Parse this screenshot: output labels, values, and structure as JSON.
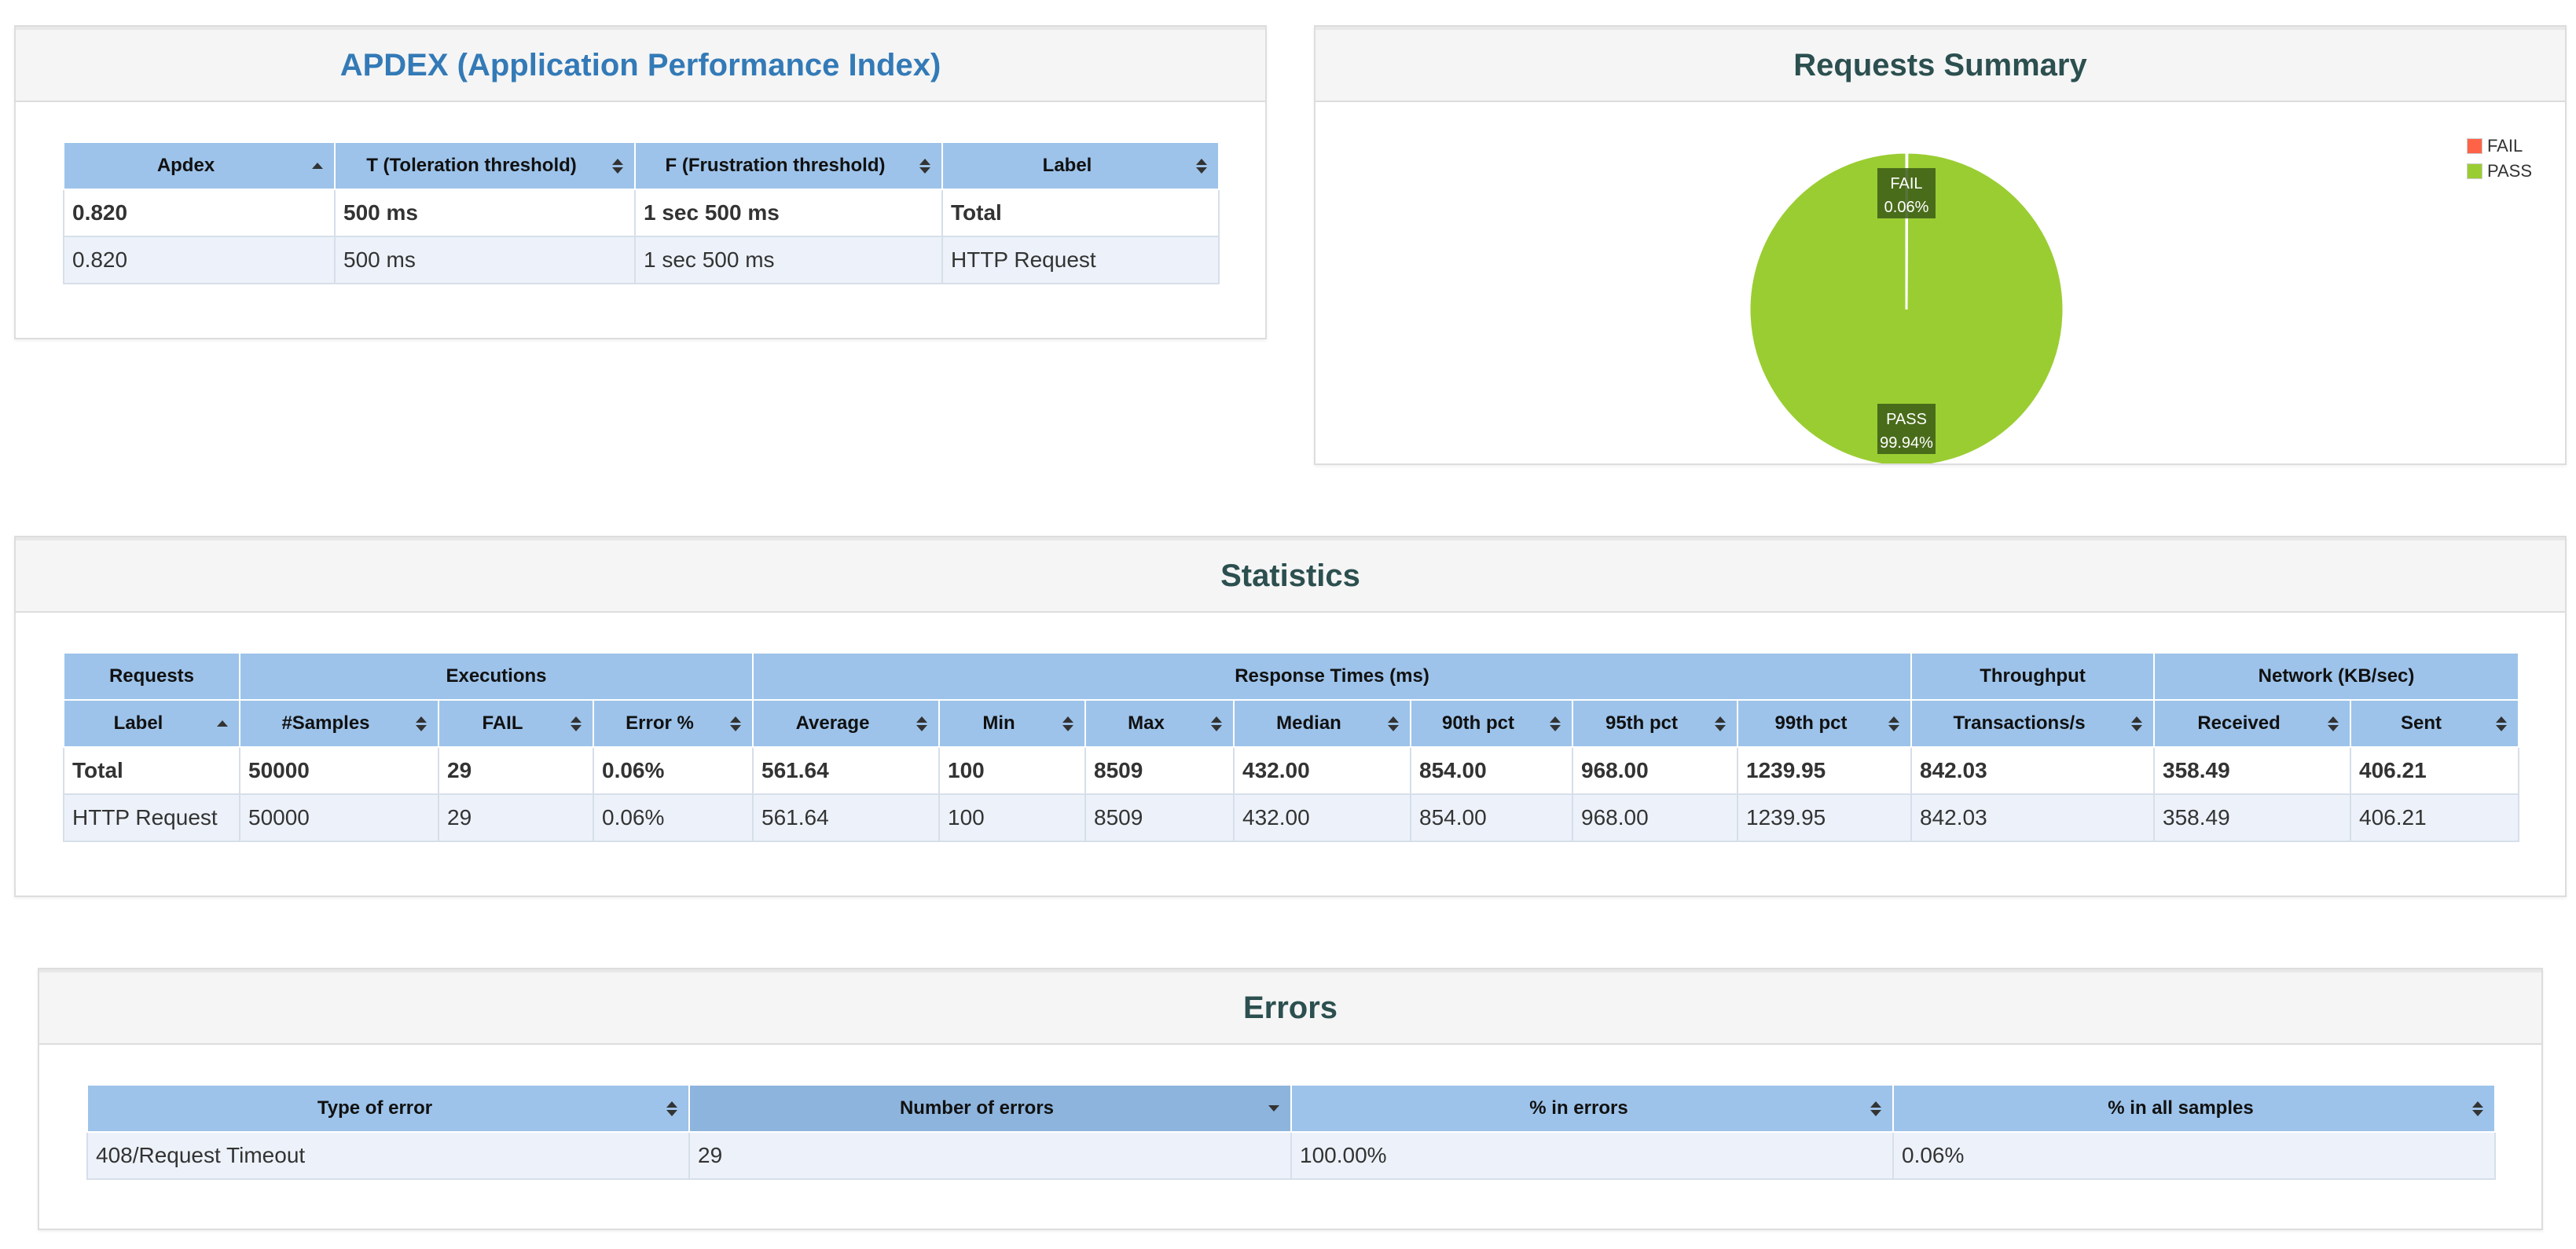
{
  "apdex": {
    "title": "APDEX (Application Performance Index)",
    "headers": [
      "Apdex",
      "T (Toleration threshold)",
      "F (Frustration threshold)",
      "Label"
    ],
    "rows": [
      [
        "0.820",
        "500 ms",
        "1 sec 500 ms",
        "Total"
      ],
      [
        "0.820",
        "500 ms",
        "1 sec 500 ms",
        "HTTP Request"
      ]
    ]
  },
  "summary": {
    "title": "Requests Summary",
    "legend": [
      {
        "label": "FAIL",
        "color": "#ff6347"
      },
      {
        "label": "PASS",
        "color": "#9acd32"
      }
    ],
    "fail_label": "FAIL",
    "fail_pct": "0.06%",
    "pass_label": "PASS",
    "pass_pct": "99.94%"
  },
  "chart_data": {
    "type": "pie",
    "categories": [
      "FAIL",
      "PASS"
    ],
    "values": [
      0.06,
      99.94
    ],
    "colors": [
      "#ff6347",
      "#9acd32"
    ]
  },
  "statistics": {
    "title": "Statistics",
    "groups": [
      "Requests",
      "Executions",
      "Response Times (ms)",
      "Throughput",
      "Network (KB/sec)"
    ],
    "headers": [
      "Label",
      "#Samples",
      "FAIL",
      "Error %",
      "Average",
      "Min",
      "Max",
      "Median",
      "90th pct",
      "95th pct",
      "99th pct",
      "Transactions/s",
      "Received",
      "Sent"
    ],
    "rows": [
      [
        "Total",
        "50000",
        "29",
        "0.06%",
        "561.64",
        "100",
        "8509",
        "432.00",
        "854.00",
        "968.00",
        "1239.95",
        "842.03",
        "358.49",
        "406.21"
      ],
      [
        "HTTP Request",
        "50000",
        "29",
        "0.06%",
        "561.64",
        "100",
        "8509",
        "432.00",
        "854.00",
        "968.00",
        "1239.95",
        "842.03",
        "358.49",
        "406.21"
      ]
    ]
  },
  "errors": {
    "title": "Errors",
    "headers": [
      "Type of error",
      "Number of errors",
      "% in errors",
      "% in all samples"
    ],
    "rows": [
      [
        "408/Request Timeout",
        "29",
        "100.00%",
        "0.06%"
      ]
    ]
  },
  "colors": {
    "header_bg": "#9dc3ea",
    "odd_row_bg": "#edf2fa",
    "pass": "#9acd32",
    "fail": "#ff6347",
    "apdex_title": "#337ab7",
    "title": "#2c4f4f"
  }
}
